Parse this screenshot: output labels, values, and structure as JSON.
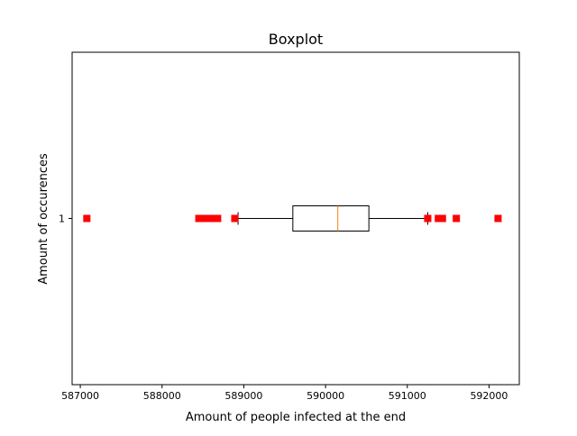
{
  "chart_data": {
    "type": "boxplot",
    "orientation": "horizontal",
    "title": "Boxplot",
    "xlabel": "Amount of people infected at the end",
    "ylabel": "Amount of occurences",
    "xlim": [
      586900,
      592370
    ],
    "ylim": [
      0.5,
      1.5
    ],
    "x_ticks": [
      587000,
      588000,
      589000,
      590000,
      591000,
      592000
    ],
    "y_ticks": [
      1
    ],
    "grid": false,
    "colors": {
      "box": "#000000",
      "median": "#ff7f0e",
      "outlier": "#ff0000"
    },
    "boxes": [
      {
        "category": "1",
        "whisker_low": 588930,
        "q1": 589600,
        "median": 590150,
        "q3": 590530,
        "whisker_high": 591250,
        "outliers": [
          587080,
          588450,
          588520,
          588580,
          588640,
          588680,
          588890,
          591250,
          591380,
          591430,
          591600,
          592110
        ]
      }
    ]
  }
}
